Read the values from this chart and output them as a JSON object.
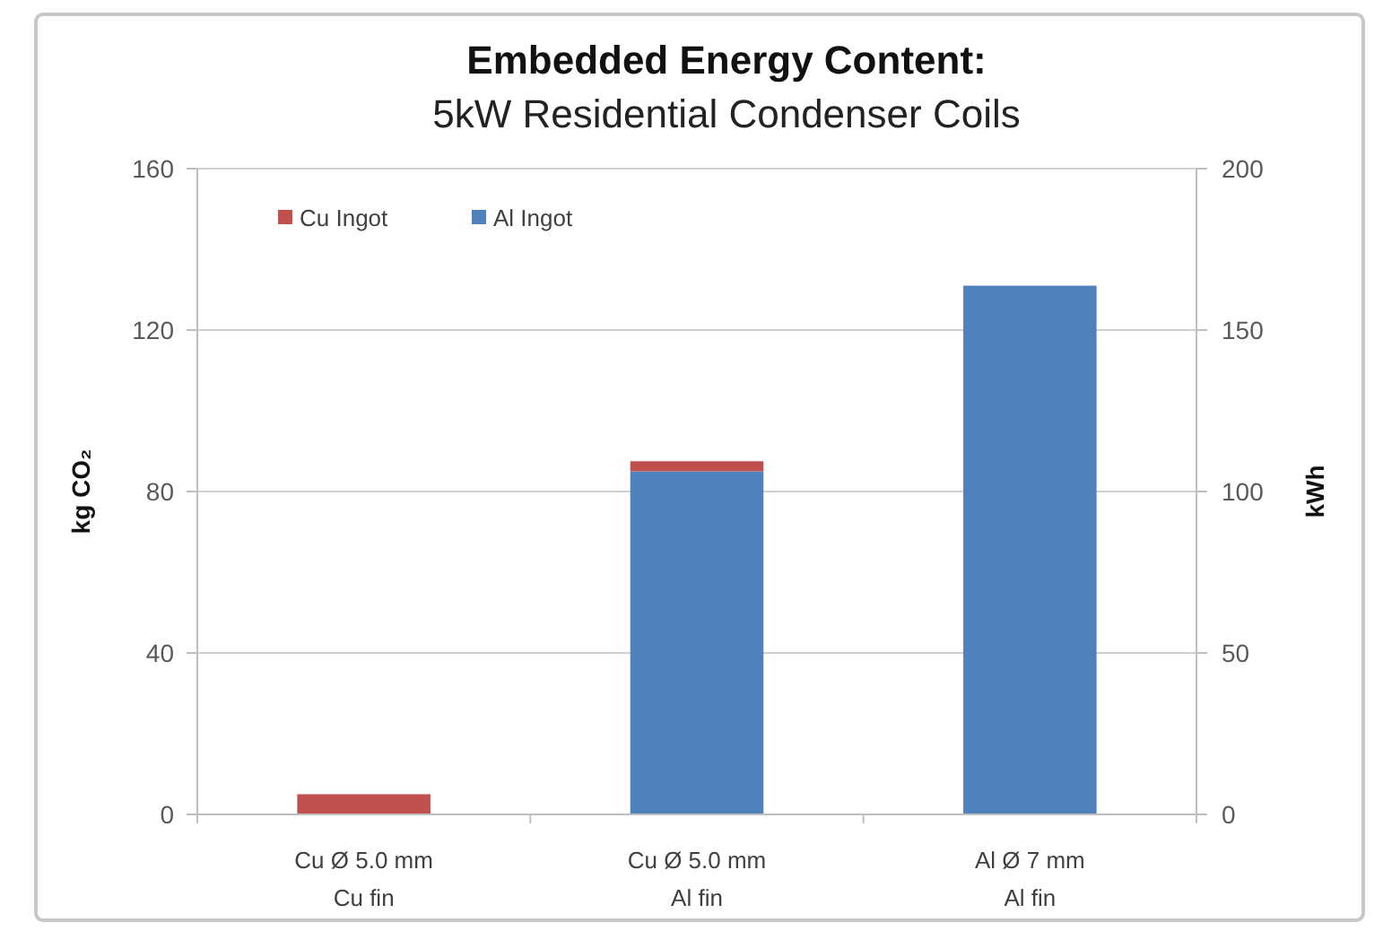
{
  "chart_data": {
    "type": "bar",
    "title": "Embedded Energy Content:",
    "subtitle": "5kW Residential Condenser Coils",
    "categories": [
      "Cu Ø 5.0 mm\nCu fin",
      "Cu Ø 5.0 mm\nAl fin",
      "Al Ø 7 mm\nAl fin"
    ],
    "series": [
      {
        "name": "Al Ingot",
        "color": "#4f81bd",
        "values": [
          0,
          85,
          131
        ]
      },
      {
        "name": "Cu Ingot",
        "color": "#c0504d",
        "values": [
          5,
          2.5,
          0
        ]
      }
    ],
    "stacked": true,
    "ylabel": "kg CO₂",
    "ylim": [
      0,
      160
    ],
    "yticks": [
      0,
      40,
      80,
      120,
      160
    ],
    "y2label": "kWh",
    "y2lim": [
      0,
      200
    ],
    "y2ticks": [
      0,
      50,
      100,
      150,
      200
    ],
    "grid": "y",
    "legend": "top left"
  }
}
